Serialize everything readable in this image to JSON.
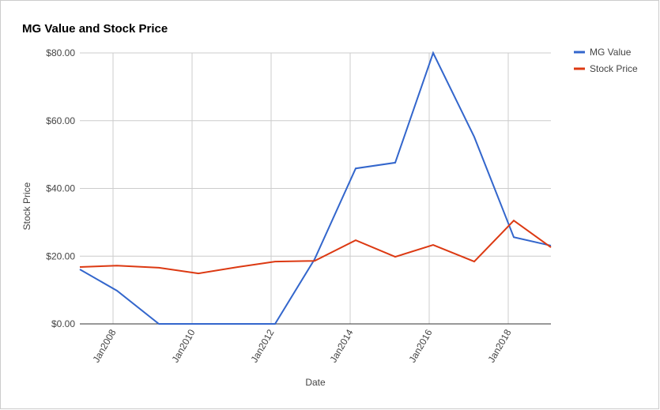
{
  "chart_data": {
    "type": "line",
    "title": "MG Value and Stock Price",
    "x_label": "Date",
    "y_label": "Stock Price",
    "x": [
      2007.16,
      2008.1,
      2009.16,
      2010.16,
      2011.16,
      2012.1,
      2013.1,
      2014.14,
      2015.14,
      2016.1,
      2017.14,
      2018.14,
      2019.08
    ],
    "series": [
      {
        "name": "MG Value",
        "color": "#3366cc",
        "values": [
          16.1,
          9.8,
          0,
          0,
          0,
          0,
          19.1,
          45.9,
          47.6,
          80,
          55.2,
          25.6,
          23.1
        ]
      },
      {
        "name": "Stock Price",
        "color": "#dc3912",
        "values": [
          16.8,
          17.2,
          16.6,
          14.9,
          16.8,
          18.4,
          18.6,
          24.7,
          19.8,
          23.3,
          18.4,
          30.5,
          22.6
        ]
      }
    ],
    "xlim": [
      2007.16,
      2019.08
    ],
    "xticks": [
      {
        "value": 2008,
        "label": "Jan2008"
      },
      {
        "value": 2010,
        "label": "Jan2010"
      },
      {
        "value": 2012,
        "label": "Jan2012"
      },
      {
        "value": 2014,
        "label": "Jan2014"
      },
      {
        "value": 2016,
        "label": "Jan2016"
      },
      {
        "value": 2018,
        "label": "Jan2018"
      }
    ],
    "ylim": [
      0,
      80
    ],
    "yticks": [
      {
        "value": 0,
        "label": "$0.00"
      },
      {
        "value": 20,
        "label": "$20.00"
      },
      {
        "value": 40,
        "label": "$40.00"
      },
      {
        "value": 60,
        "label": "$60.00"
      },
      {
        "value": 80,
        "label": "$80.00"
      }
    ],
    "grid": true,
    "legend": "right"
  }
}
